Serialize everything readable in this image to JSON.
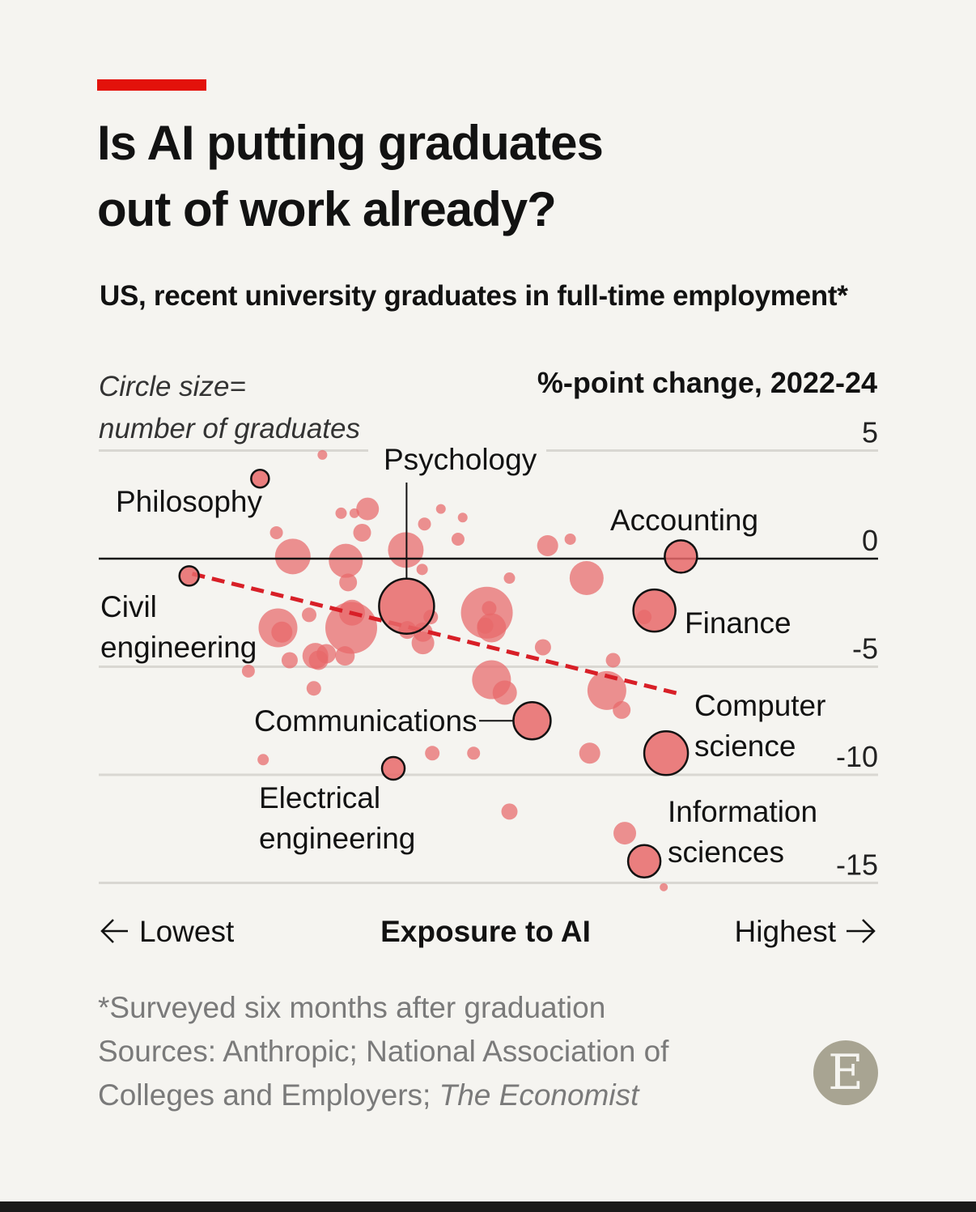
{
  "header": {
    "title_line1": "Is AI putting graduates",
    "title_line2": "out of work already?",
    "subtitle": "US, recent university graduates in full-time employment*"
  },
  "size_note": {
    "line1": "Circle size=",
    "line2": "number of graduates"
  },
  "chart_data": {
    "type": "scatter",
    "title": "Is AI putting graduates out of work already?",
    "subtitle": "US, recent university graduates in full-time employment*",
    "ylabel": "%-point change, 2022-24",
    "xlabel": "Exposure to AI",
    "x_low_label": "Lowest",
    "x_high_label": "Highest",
    "size_legend": "Circle size= number of graduates",
    "ylim": [
      -15,
      5
    ],
    "y_ticks": [
      5,
      0,
      -5,
      -10,
      -15
    ],
    "y_tick_labels": [
      "5",
      "0",
      "-5",
      "-10",
      "-15"
    ],
    "xlim": [
      0,
      100
    ],
    "grid": true,
    "colors": {
      "point": "#e8686a",
      "trend": "#d81f27",
      "highlight_outline": "#121212",
      "zero_line": "#121212",
      "grid": "#d9d7d2"
    },
    "trend_line": {
      "x": [
        12,
        75
      ],
      "y": [
        -0.7,
        -6.3
      ]
    },
    "labelled_points": [
      {
        "name": "Philosophy",
        "label_lines": [
          "Philosophy"
        ],
        "x": 20.7,
        "y": 3.7,
        "r": 11
      },
      {
        "name": "Civil engineering",
        "label_lines": [
          "Civil",
          "engineering"
        ],
        "x": 11.6,
        "y": -0.8,
        "r": 12
      },
      {
        "name": "Psychology",
        "label_lines": [
          "Psychology"
        ],
        "x": 39.5,
        "y": -2.2,
        "r": 34
      },
      {
        "name": "Accounting",
        "label_lines": [
          "Accounting"
        ],
        "x": 74.7,
        "y": 0.1,
        "r": 20
      },
      {
        "name": "Finance",
        "label_lines": [
          "Finance"
        ],
        "x": 71.3,
        "y": -2.4,
        "r": 26
      },
      {
        "name": "Communications",
        "label_lines": [
          "Communications"
        ],
        "x": 55.6,
        "y": -7.5,
        "r": 23
      },
      {
        "name": "Computer science",
        "label_lines": [
          "Computer",
          "science"
        ],
        "x": 72.8,
        "y": -9.0,
        "r": 27
      },
      {
        "name": "Electrical engineering",
        "label_lines": [
          "Electrical",
          "engineering"
        ],
        "x": 37.8,
        "y": -9.7,
        "r": 14
      },
      {
        "name": "Information sciences",
        "label_lines": [
          "Information",
          "sciences"
        ],
        "x": 70.0,
        "y": -14.0,
        "r": 20
      }
    ],
    "other_points": [
      {
        "x": 28.7,
        "y": 4.8,
        "r": 6
      },
      {
        "x": 34.5,
        "y": 2.3,
        "r": 14
      },
      {
        "x": 31.1,
        "y": 2.1,
        "r": 7
      },
      {
        "x": 32.8,
        "y": 2.1,
        "r": 6
      },
      {
        "x": 33.8,
        "y": 1.2,
        "r": 11
      },
      {
        "x": 41.8,
        "y": 1.6,
        "r": 8
      },
      {
        "x": 43.9,
        "y": 2.3,
        "r": 6
      },
      {
        "x": 46.7,
        "y": 1.9,
        "r": 6
      },
      {
        "x": 46.1,
        "y": 0.9,
        "r": 8
      },
      {
        "x": 39.4,
        "y": 0.4,
        "r": 22
      },
      {
        "x": 57.6,
        "y": 0.6,
        "r": 13
      },
      {
        "x": 60.5,
        "y": 0.9,
        "r": 7
      },
      {
        "x": 22.8,
        "y": 1.2,
        "r": 8
      },
      {
        "x": 24.9,
        "y": 0.1,
        "r": 22
      },
      {
        "x": 31.7,
        "y": -0.1,
        "r": 21
      },
      {
        "x": 32.0,
        "y": -1.1,
        "r": 11
      },
      {
        "x": 41.5,
        "y": -0.5,
        "r": 7
      },
      {
        "x": 52.7,
        "y": -0.9,
        "r": 7
      },
      {
        "x": 62.6,
        "y": -0.9,
        "r": 21
      },
      {
        "x": 32.5,
        "y": -2.5,
        "r": 16
      },
      {
        "x": 27.0,
        "y": -2.6,
        "r": 9
      },
      {
        "x": 23.0,
        "y": -3.2,
        "r": 24
      },
      {
        "x": 23.5,
        "y": -3.4,
        "r": 13
      },
      {
        "x": 32.4,
        "y": -3.2,
        "r": 32
      },
      {
        "x": 24.5,
        "y": -4.7,
        "r": 10
      },
      {
        "x": 27.8,
        "y": -4.5,
        "r": 16
      },
      {
        "x": 28.2,
        "y": -4.7,
        "r": 12
      },
      {
        "x": 29.2,
        "y": -4.4,
        "r": 12
      },
      {
        "x": 31.6,
        "y": -4.5,
        "r": 12
      },
      {
        "x": 39.6,
        "y": -3.3,
        "r": 11
      },
      {
        "x": 41.6,
        "y": -3.4,
        "r": 12
      },
      {
        "x": 41.6,
        "y": -3.9,
        "r": 14
      },
      {
        "x": 42.6,
        "y": -2.7,
        "r": 9
      },
      {
        "x": 49.6,
        "y": -3.1,
        "r": 10
      },
      {
        "x": 49.8,
        "y": -2.5,
        "r": 32
      },
      {
        "x": 50.1,
        "y": -2.3,
        "r": 9
      },
      {
        "x": 50.4,
        "y": -3.2,
        "r": 18
      },
      {
        "x": 50.4,
        "y": -5.6,
        "r": 24
      },
      {
        "x": 52.1,
        "y": -6.2,
        "r": 15
      },
      {
        "x": 57.0,
        "y": -4.1,
        "r": 10
      },
      {
        "x": 66.0,
        "y": -4.7,
        "r": 9
      },
      {
        "x": 65.2,
        "y": -6.1,
        "r": 24
      },
      {
        "x": 67.1,
        "y": -7.0,
        "r": 11
      },
      {
        "x": 70.0,
        "y": -2.7,
        "r": 9
      },
      {
        "x": 19.2,
        "y": -5.2,
        "r": 8
      },
      {
        "x": 27.6,
        "y": -6.0,
        "r": 9
      },
      {
        "x": 21.1,
        "y": -9.3,
        "r": 7
      },
      {
        "x": 42.8,
        "y": -9.0,
        "r": 9
      },
      {
        "x": 48.1,
        "y": -9.0,
        "r": 8
      },
      {
        "x": 63.0,
        "y": -9.0,
        "r": 13
      },
      {
        "x": 52.7,
        "y": -11.7,
        "r": 10
      },
      {
        "x": 67.5,
        "y": -12.7,
        "r": 14
      },
      {
        "x": 72.5,
        "y": -15.2,
        "r": 5
      }
    ]
  },
  "footnote": {
    "note": "*Surveyed six months after graduation",
    "sources_line1": "Sources: Anthropic; National Association of",
    "sources_line2_start": "Colleges and Employers; ",
    "sources_line2_italic": "The Economist"
  },
  "logo": {
    "letter": "E"
  }
}
